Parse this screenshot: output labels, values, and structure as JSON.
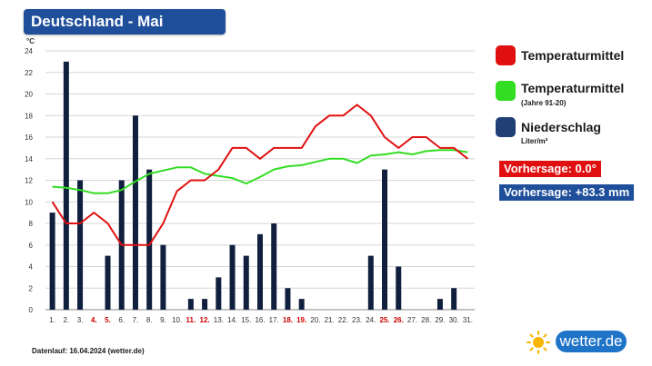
{
  "header": {
    "title": "Deutschland - Mai"
  },
  "chart_data": {
    "type": "bar+line",
    "ylabel": "°C",
    "ylim": [
      0,
      24
    ],
    "yticks": [
      0,
      2,
      4,
      6,
      8,
      10,
      12,
      14,
      16,
      18,
      20,
      22,
      24
    ],
    "grid": true,
    "categories": [
      "1.",
      "2.",
      "3.",
      "4.",
      "5.",
      "6.",
      "7.",
      "8.",
      "9.",
      "10.",
      "11.",
      "12.",
      "13.",
      "14.",
      "15.",
      "16.",
      "17.",
      "18.",
      "19.",
      "20.",
      "21.",
      "22.",
      "23.",
      "24.",
      "25.",
      "26.",
      "27.",
      "28.",
      "29.",
      "30.",
      "31."
    ],
    "highlighted_days": [
      "4.",
      "5.",
      "11.",
      "12.",
      "18.",
      "19.",
      "25.",
      "26."
    ],
    "series": [
      {
        "name": "Niederschlag",
        "type": "bar",
        "color": "#0f1f3d",
        "values": [
          9,
          23,
          12,
          null,
          5,
          12,
          18,
          13,
          6,
          null,
          1,
          1,
          3,
          6,
          5,
          7,
          8,
          2,
          1,
          null,
          null,
          null,
          null,
          5,
          13,
          4,
          null,
          null,
          1,
          2,
          null
        ]
      },
      {
        "name": "Temperaturmittel",
        "type": "line",
        "color": "#e01010",
        "values": [
          10,
          8,
          8,
          9,
          8,
          6,
          6,
          6,
          8,
          11,
          12,
          12,
          13,
          15,
          15,
          14,
          15,
          15,
          15,
          17,
          18,
          18,
          19,
          18,
          16,
          15,
          16,
          16,
          15,
          15,
          14
        ]
      },
      {
        "name": "Temperaturmittel (Jahre 91-20)",
        "type": "line",
        "color": "#33dd22",
        "values": [
          11.4,
          11.3,
          11.1,
          10.8,
          10.8,
          11.1,
          11.9,
          12.6,
          12.9,
          13.2,
          13.2,
          12.6,
          12.4,
          12.2,
          11.7,
          12.3,
          13.0,
          13.3,
          13.4,
          13.7,
          14.0,
          14.0,
          13.6,
          14.3,
          14.4,
          14.6,
          14.4,
          14.7,
          14.8,
          14.8,
          14.6
        ]
      }
    ]
  },
  "legend": {
    "items": [
      {
        "label": "Temperaturmittel",
        "sub": "",
        "color": "#e01010"
      },
      {
        "label": "Temperaturmittel",
        "sub": "(Jahre 91-20)",
        "color": "#33dd22"
      },
      {
        "label": "Niederschlag",
        "sub": "Liter/m²",
        "color": "#1f3f75"
      }
    ]
  },
  "forecast": {
    "temperature": "Vorhersage: 0.0°",
    "temperature_color": "#e01010",
    "precipitation": "Vorhersage: +83.3 mm",
    "precipitation_color": "#1f4e9a"
  },
  "footer": {
    "text": "Datenlauf: 16.04.2024 (wetter.de)"
  },
  "logo": {
    "text": "wetter.de",
    "icon": "sun-icon"
  }
}
